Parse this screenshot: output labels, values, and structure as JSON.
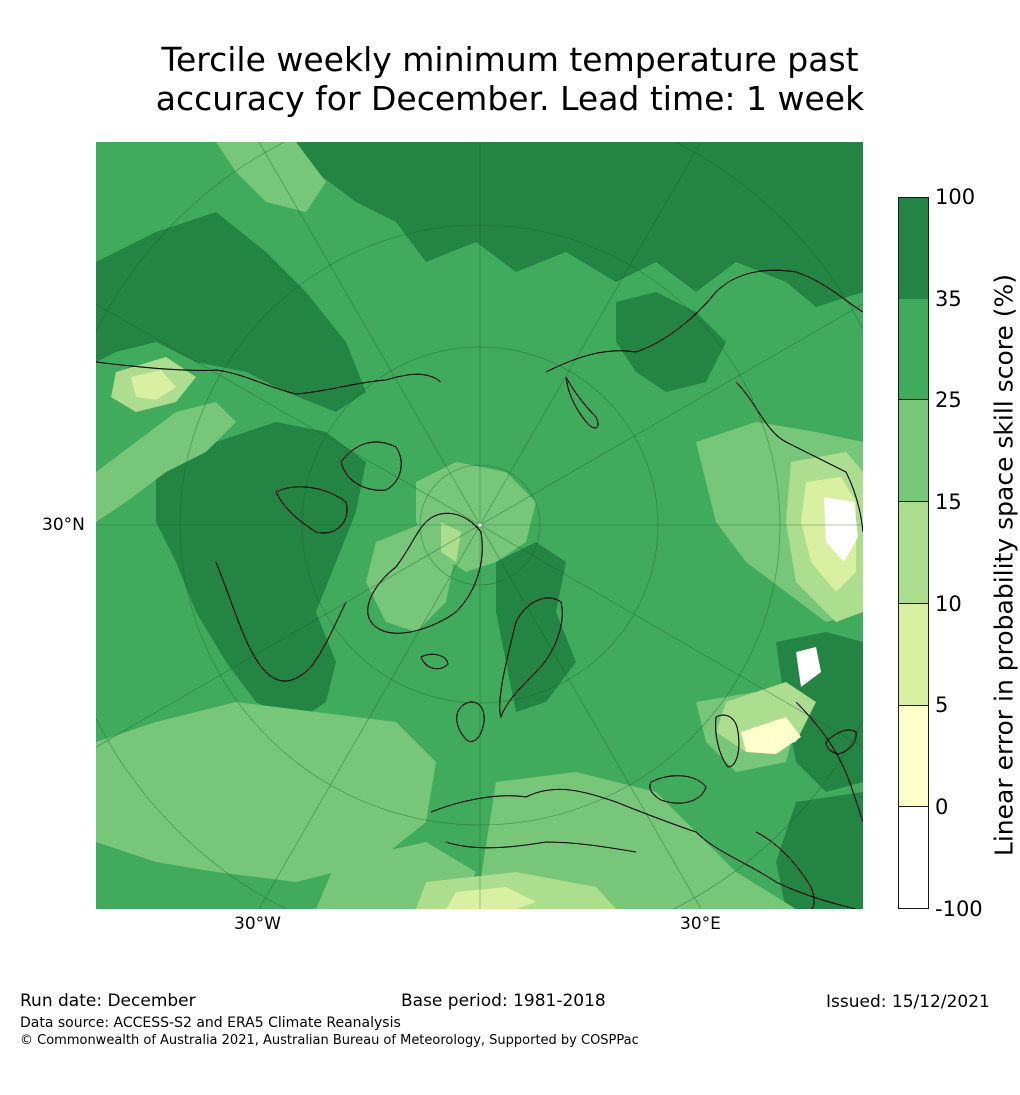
{
  "title": {
    "line1": "Tercile weekly minimum temperature past",
    "line2": "accuracy for December. Lead time: 1 week"
  },
  "map": {
    "projection": "north-polar-stereographic",
    "lat_label": "30°N",
    "lon_labels": [
      "30°W",
      "30°E"
    ]
  },
  "colorbar": {
    "label": "Linear error in probability space skill score (%)",
    "ticks": [
      "100",
      "35",
      "25",
      "15",
      "10",
      "5",
      "0",
      "-100"
    ],
    "colors": [
      "#238443",
      "#41ab5d",
      "#78c679",
      "#addd8e",
      "#d9f0a3",
      "#ffffcc",
      "#ffffff"
    ],
    "bins": [
      {
        "from": 35,
        "to": 100,
        "color": "#238443"
      },
      {
        "from": 25,
        "to": 35,
        "color": "#41ab5d"
      },
      {
        "from": 15,
        "to": 25,
        "color": "#78c679"
      },
      {
        "from": 10,
        "to": 15,
        "color": "#addd8e"
      },
      {
        "from": 5,
        "to": 10,
        "color": "#d9f0a3"
      },
      {
        "from": 0,
        "to": 5,
        "color": "#ffffcc"
      },
      {
        "from": -100,
        "to": 0,
        "color": "#ffffff"
      }
    ]
  },
  "footer": {
    "run_date": "Run date: December",
    "base_period": "Base period: 1981-2018",
    "issued": "Issued: 15/12/2021",
    "data_source": "Data source: ACCESS-S2 and ERA5 Climate Reanalysis",
    "copyright": "© Commonwealth of Australia 2021, Australian Bureau of Meteorology, Supported by COSPPac"
  }
}
